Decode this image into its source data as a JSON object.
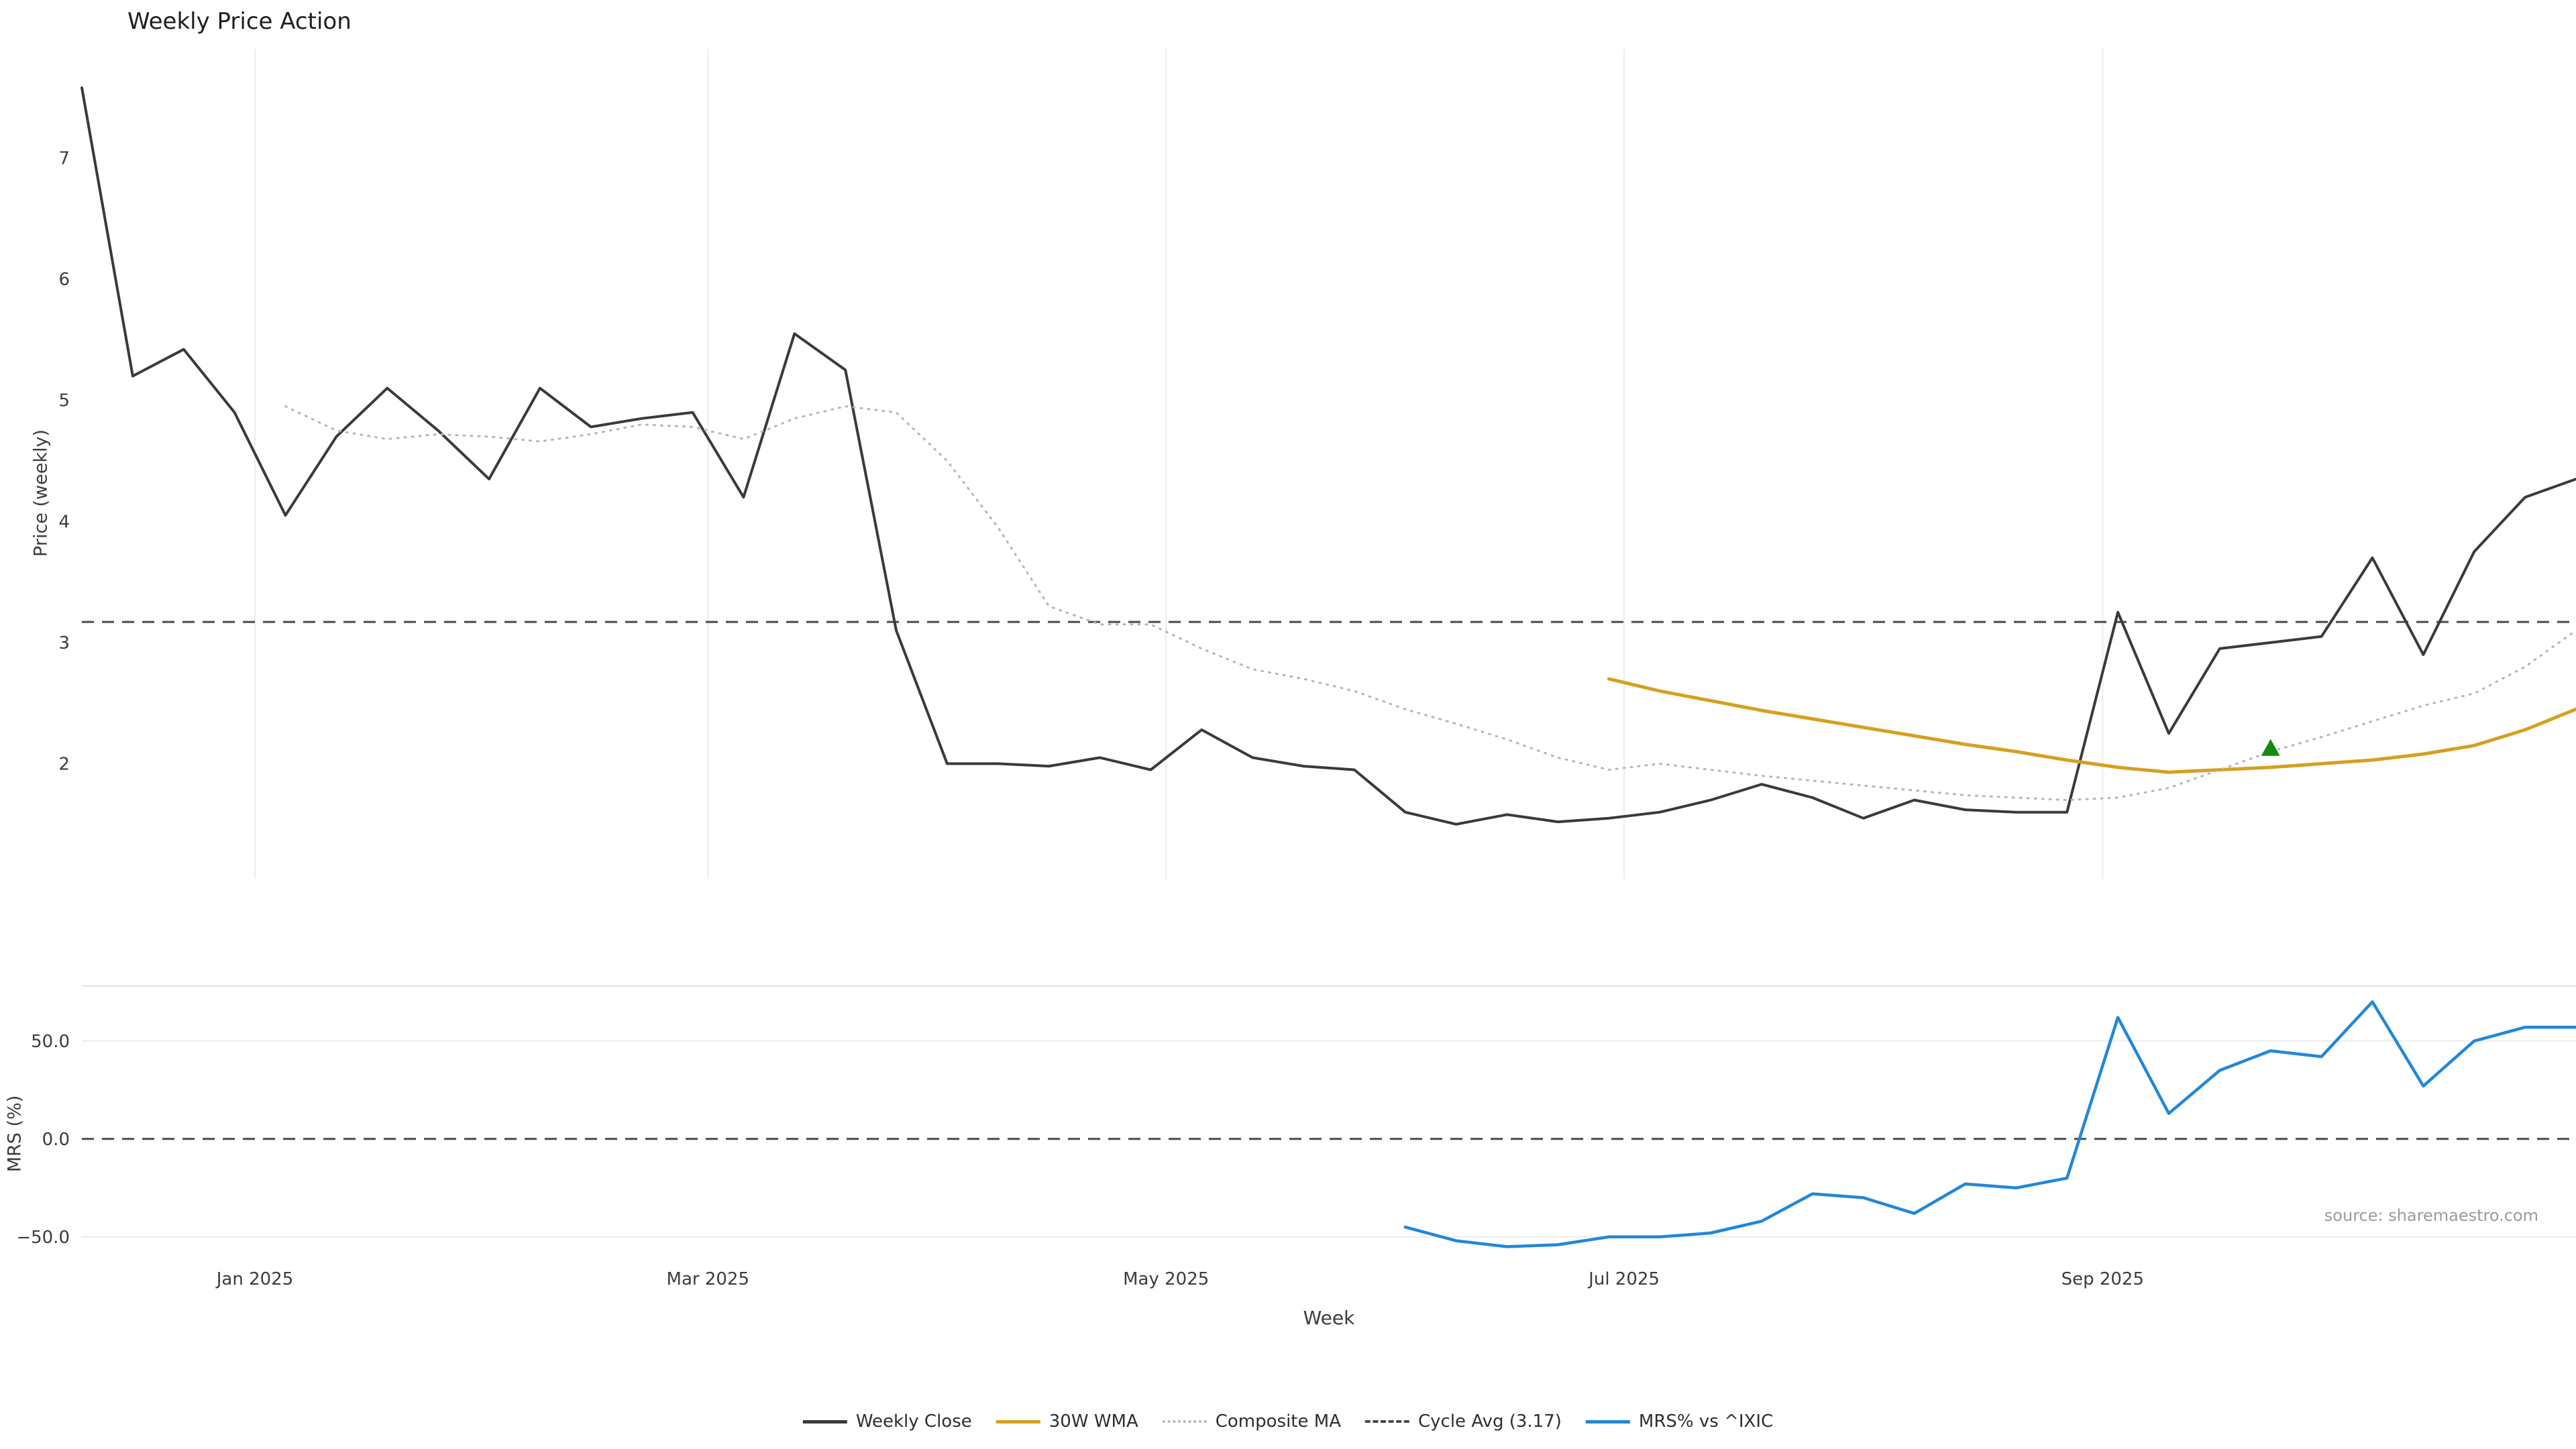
{
  "title": "Weekly Price Action",
  "source": "source: sharemaestro.com",
  "chart_data": {
    "type": "line",
    "title": "Weekly Price Action",
    "xlabel": "Week",
    "x_unit": "week_index",
    "x_range": [
      0,
      49
    ],
    "x_ticks": [
      {
        "index": 3.4,
        "label": "Jan 2025"
      },
      {
        "index": 12.3,
        "label": "Mar 2025"
      },
      {
        "index": 21.3,
        "label": "May 2025"
      },
      {
        "index": 30.3,
        "label": "Jul 2025"
      },
      {
        "index": 39.7,
        "label": "Sep 2025"
      }
    ],
    "panels": [
      {
        "id": "price",
        "ylabel": "Price (weekly)",
        "ylim": [
          1.05,
          7.9
        ],
        "grid": "vertical",
        "y_ticks": [
          {
            "value": 2,
            "label": "2"
          },
          {
            "value": 3,
            "label": "3"
          },
          {
            "value": 4,
            "label": "4"
          },
          {
            "value": 5,
            "label": "5"
          },
          {
            "value": 6,
            "label": "6"
          },
          {
            "value": 7,
            "label": "7"
          }
        ]
      },
      {
        "id": "mrs",
        "ylabel": "MRS (%)",
        "ylim": [
          -60,
          78
        ],
        "grid": "horizontal",
        "y_ticks": [
          {
            "value": 50,
            "label": "50.0"
          },
          {
            "value": 0,
            "label": "0.0"
          },
          {
            "value": -50,
            "label": "−50.0"
          }
        ]
      }
    ],
    "series": [
      {
        "name": "Weekly Close",
        "panel": "price",
        "color": "#3a3a3a",
        "line": "solid",
        "width": 4,
        "start_index": 0,
        "values": [
          7.58,
          5.2,
          5.42,
          4.9,
          4.05,
          4.7,
          5.1,
          4.75,
          4.35,
          5.1,
          4.78,
          4.85,
          4.9,
          4.2,
          5.55,
          5.25,
          3.1,
          2.0,
          2.0,
          1.98,
          2.05,
          1.95,
          2.28,
          2.05,
          1.98,
          1.95,
          1.6,
          1.5,
          1.58,
          1.52,
          1.55,
          1.6,
          1.7,
          1.83,
          1.72,
          1.55,
          1.7,
          1.62,
          1.6,
          1.6,
          3.25,
          2.25,
          2.95,
          3.0,
          3.05,
          3.7,
          2.9,
          3.75,
          4.2,
          4.35
        ]
      },
      {
        "name": "30W WMA",
        "panel": "price",
        "color": "#d5a021",
        "line": "solid",
        "width": 5,
        "start_index": 30,
        "values": [
          2.7,
          2.6,
          2.52,
          2.44,
          2.37,
          2.3,
          2.23,
          2.16,
          2.1,
          2.03,
          1.97,
          1.93,
          1.95,
          1.97,
          2.0,
          2.03,
          2.08,
          2.15,
          2.28,
          2.45
        ]
      },
      {
        "name": "Composite MA",
        "panel": "price",
        "color": "#b5b5b5",
        "line": "dotted",
        "width": 3,
        "start_index": 4,
        "values": [
          4.95,
          4.75,
          4.68,
          4.72,
          4.7,
          4.66,
          4.72,
          4.8,
          4.78,
          4.68,
          4.85,
          4.95,
          4.9,
          4.5,
          3.95,
          3.3,
          3.15,
          3.15,
          2.95,
          2.78,
          2.7,
          2.6,
          2.45,
          2.33,
          2.2,
          2.05,
          1.95,
          2.0,
          1.95,
          1.9,
          1.86,
          1.82,
          1.78,
          1.74,
          1.72,
          1.7,
          1.72,
          1.8,
          1.95,
          2.1,
          2.22,
          2.35,
          2.48,
          2.58,
          2.8,
          3.1
        ]
      },
      {
        "name": "MRS% vs ^IXIC",
        "panel": "mrs",
        "color": "#2287d8",
        "line": "solid",
        "width": 4.5,
        "start_index": 26,
        "values": [
          -45,
          -52,
          -55,
          -54,
          -50,
          -50,
          -48,
          -42,
          -28,
          -30,
          -38,
          -23,
          -25,
          -20,
          62,
          13,
          35,
          45,
          42,
          70,
          27,
          50,
          57,
          57
        ]
      }
    ],
    "reference_lines": [
      {
        "name": "Cycle Avg (3.17)",
        "panel": "price",
        "value": 3.17,
        "color": "#4a4a4a",
        "line": "dashed"
      },
      {
        "name": "Zero Line",
        "panel": "mrs",
        "value": 0,
        "color": "#4a4a4a",
        "line": "dashed"
      }
    ],
    "markers": [
      {
        "name": "buy-signal",
        "panel": "price",
        "index": 43,
        "value": 2.12,
        "shape": "triangle-up",
        "color": "#128a12"
      }
    ],
    "legend": [
      {
        "label": "Weekly Close",
        "color": "#3a3a3a",
        "line": "solid"
      },
      {
        "label": "30W WMA",
        "color": "#d5a021",
        "line": "solid"
      },
      {
        "label": "Composite MA",
        "color": "#b5b5b5",
        "line": "dotted"
      },
      {
        "label": "Cycle Avg (3.17)",
        "color": "#4a4a4a",
        "line": "dashed"
      },
      {
        "label": "MRS% vs ^IXIC",
        "color": "#2287d8",
        "line": "solid"
      }
    ],
    "colors": {
      "grid": "#ececec",
      "spine": "#e2e2e2",
      "tick_label": "#3c3c3c"
    }
  }
}
